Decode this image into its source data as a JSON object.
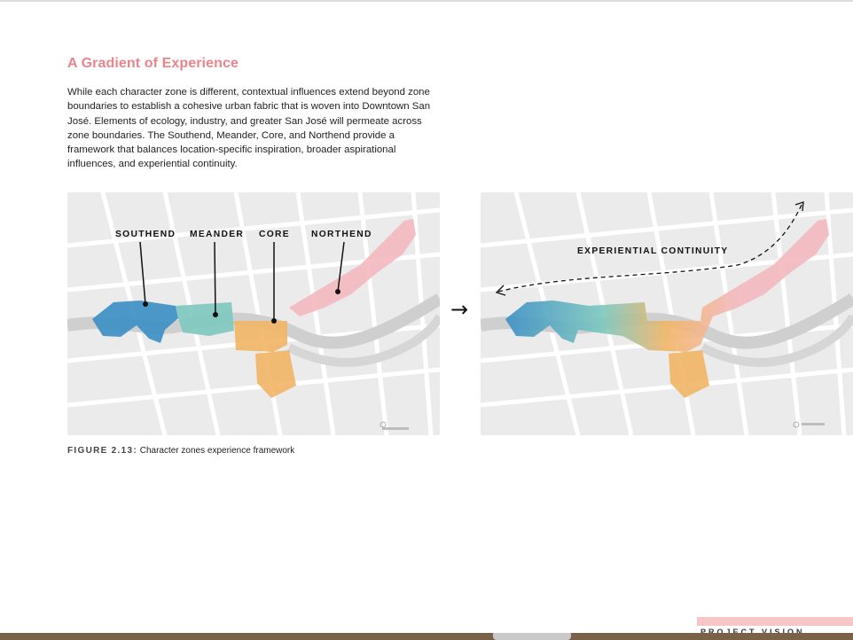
{
  "page": {
    "title": "A Gradient of Experience",
    "body": "While each character zone is different, contextual influences extend beyond zone boundaries to establish a cohesive urban fabric that is woven into Downtown San José. Elements of ecology, industry, and greater San José will permeate across zone boundaries. The Southend, Meander, Core, and Northend provide a framework that balances location-specific inspiration, broader aspirational influences, and experiential continuity."
  },
  "left_map": {
    "zones": [
      "SOUTHEND",
      "MEANDER",
      "CORE",
      "NORTHEND"
    ]
  },
  "right_map": {
    "label": "EXPERIENTIAL CONTINUITY"
  },
  "flow_arrow": "→",
  "figure": {
    "number": "FIGURE 2.13:",
    "caption": "Character zones experience framework"
  },
  "footer": {
    "section": "PROJECT VISION"
  },
  "colors": {
    "title": "#e8858d",
    "southend": "#3a8fc4",
    "meander": "#7cc8bf",
    "core": "#f2b566",
    "northend": "#f3b8bf"
  }
}
